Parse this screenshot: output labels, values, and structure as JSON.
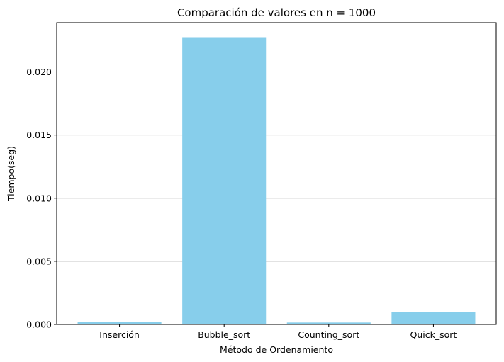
{
  "chart_data": {
    "type": "bar",
    "title": "Comparación de valores en n = 1000",
    "xlabel": "Método de Ordenamiento",
    "ylabel": "Tiempo(seg)",
    "categories": [
      "Inserción",
      "Bubble_sort",
      "Counting_sort",
      "Quick_sort"
    ],
    "values": [
      0.00022,
      0.02275,
      0.00015,
      0.00098
    ],
    "ylim": [
      0,
      0.0239
    ],
    "yticks": [
      0.0,
      0.005,
      0.01,
      0.015,
      0.02
    ],
    "ytick_labels": [
      "0.000",
      "0.005",
      "0.010",
      "0.015",
      "0.020"
    ],
    "grid": "y-major",
    "bar_color": "#87ceeb"
  }
}
